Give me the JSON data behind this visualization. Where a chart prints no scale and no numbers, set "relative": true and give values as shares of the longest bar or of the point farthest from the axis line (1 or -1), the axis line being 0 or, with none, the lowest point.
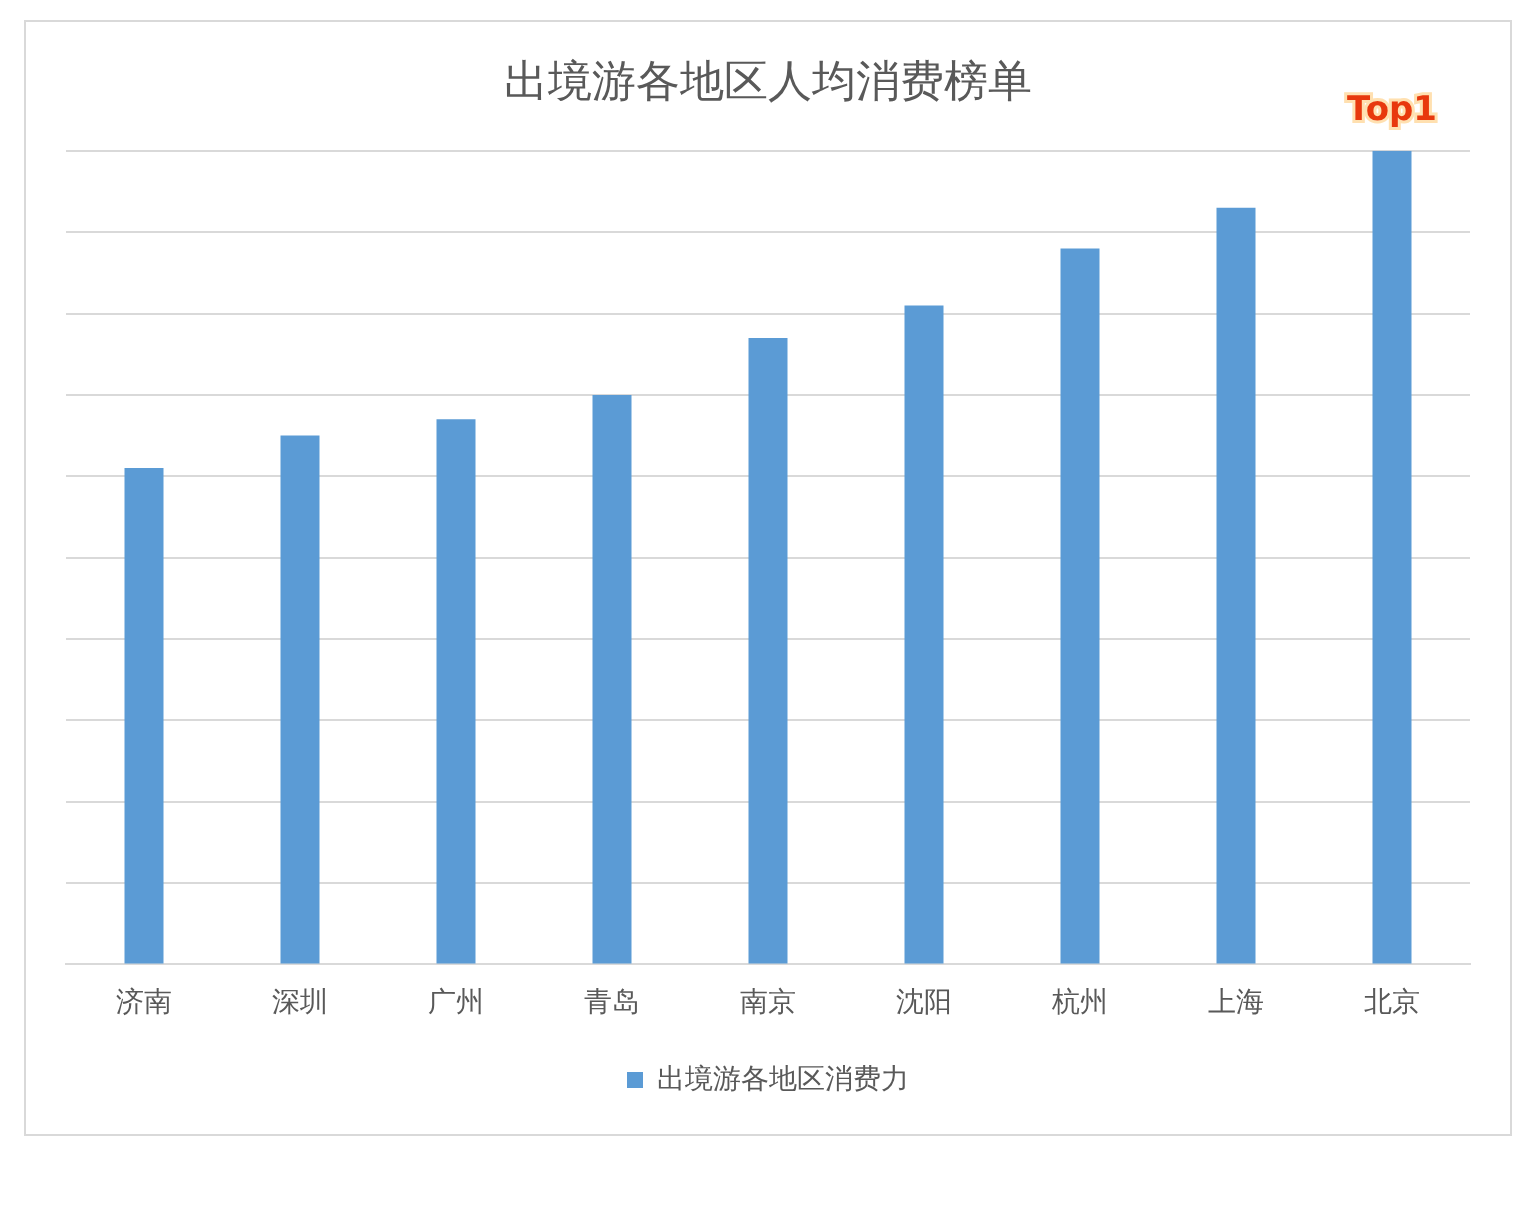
{
  "chart_data": {
    "type": "bar",
    "title": "出境游各地区人均消费榜单",
    "categories": [
      "济南",
      "深圳",
      "广州",
      "青岛",
      "南京",
      "沈阳",
      "杭州",
      "上海",
      "北京"
    ],
    "series": [
      {
        "name": "出境游各地区消费力",
        "color": "#5b9bd5",
        "values": [
          0.61,
          0.65,
          0.67,
          0.7,
          0.77,
          0.81,
          0.88,
          0.93,
          1
        ]
      }
    ],
    "relative": true,
    "grid": "y",
    "legend": "bottom",
    "annotations": [
      {
        "text": "Top1",
        "x": "北京",
        "y": 1
      }
    ]
  }
}
